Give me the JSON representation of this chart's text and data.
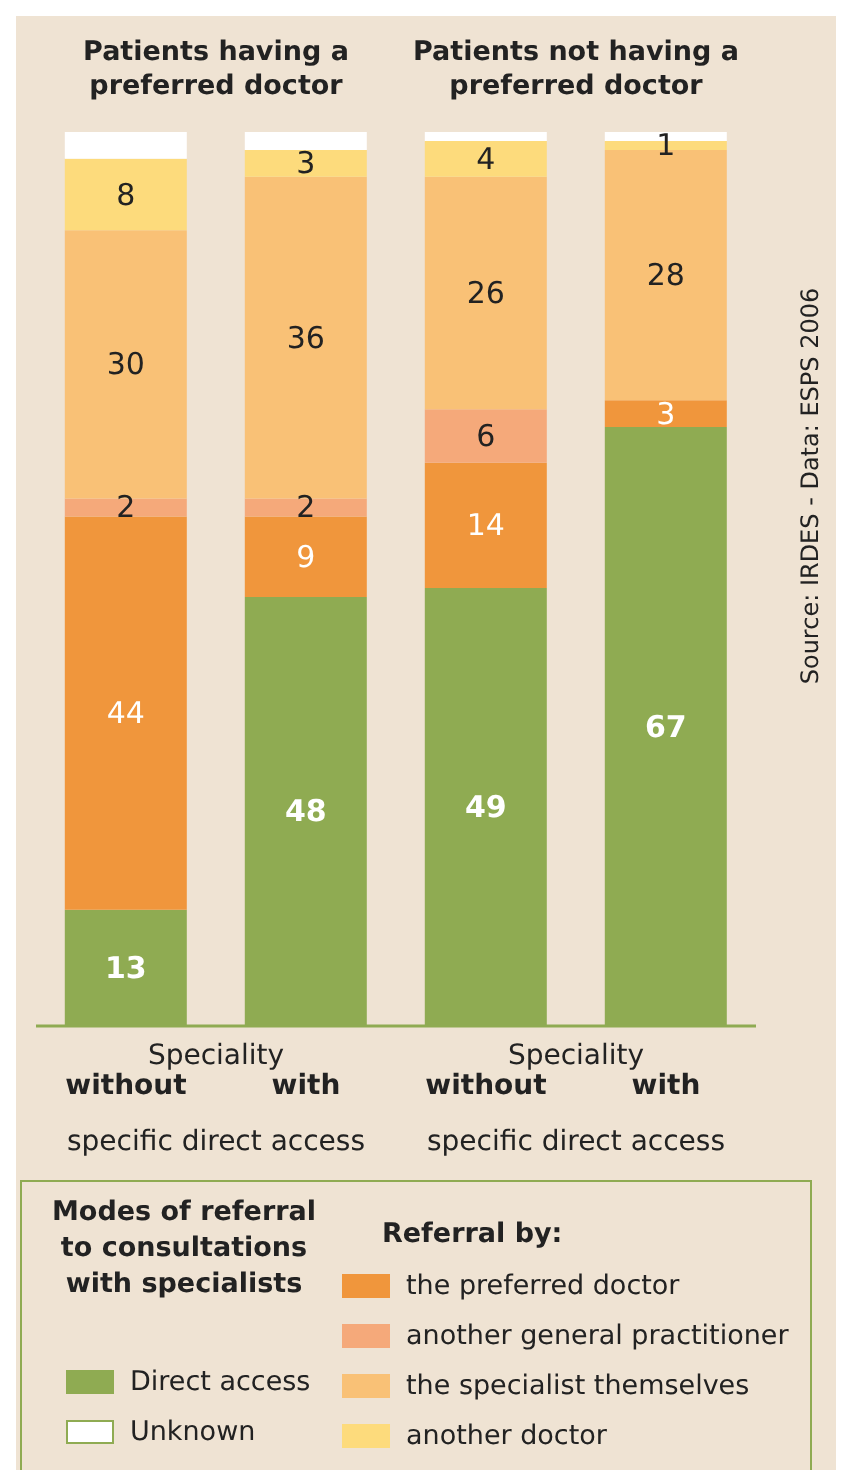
{
  "chart_data": {
    "type": "bar",
    "stacked": true,
    "categories": [
      "without",
      "with",
      "without",
      "with"
    ],
    "ylim": [
      0,
      100
    ],
    "tick_labels": "x",
    "legend": "bottom",
    "legend_title": "Modes of referral to consultations with specialists",
    "series": [
      {
        "name": "Direct access",
        "color": "#8fab52",
        "values": [
          13,
          48,
          49,
          67
        ],
        "value_labels": [
          "13",
          "48",
          "49",
          "67"
        ]
      },
      {
        "name": "the preferred doctor",
        "color": "#f0963c",
        "values": [
          44,
          9,
          14,
          3
        ],
        "value_labels": [
          "44",
          "9",
          "14",
          "3"
        ]
      },
      {
        "name": "another general practitioner",
        "color": "#f5a97a",
        "values": [
          2,
          2,
          6,
          0
        ],
        "value_labels": [
          "2",
          "2",
          "6",
          null
        ]
      },
      {
        "name": "the specialist themselves",
        "color": "#f9c176",
        "values": [
          30,
          36,
          26,
          28
        ],
        "value_labels": [
          "30",
          "36",
          "26",
          "28"
        ]
      },
      {
        "name": "another doctor",
        "color": "#fddb7c",
        "values": [
          8,
          3,
          4,
          1
        ],
        "value_labels": [
          "8",
          "3",
          "4",
          "1"
        ]
      },
      {
        "name": "Unknown",
        "color": "#ffffff",
        "values": [
          3,
          2,
          1,
          1
        ],
        "value_labels": [
          null,
          null,
          null,
          null
        ]
      }
    ],
    "annotations": [
      "Patients having a preferred doctor",
      "Patients not having a preferred doctor",
      "Speciality",
      "Speciality",
      "specific direct access",
      "specific direct access",
      "Source: IRDES - Data: ESPS 2006",
      "Referral by:"
    ]
  }
}
